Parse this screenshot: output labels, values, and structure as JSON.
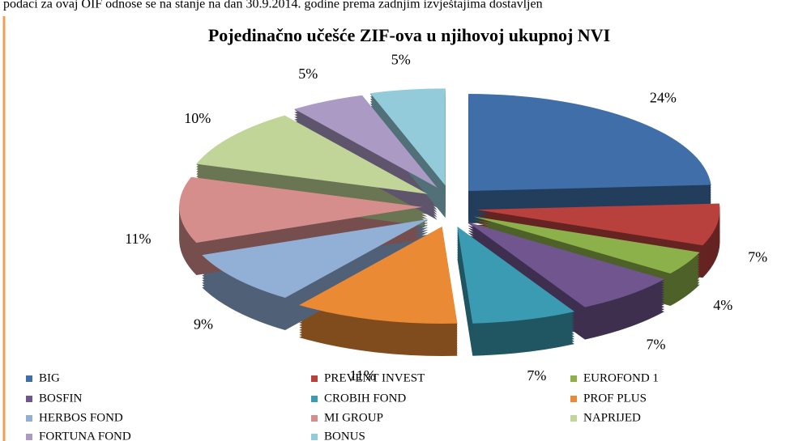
{
  "header_text": "podaci za ovaj OIF odnose se na stanje na dan 30.9.2014. godine prema zadnjim izvještajima dostavljen",
  "chart_data": {
    "type": "pie",
    "title": "Pojedinačno učešće ZIF-ova u njihovoj ukupnoj NVI",
    "categories": [
      "BIG",
      "PREVENT INVEST",
      "EUROFOND 1",
      "BOSFIN",
      "CROBIH FOND",
      "PROF PLUS",
      "HERBOS FOND",
      "MI GROUP",
      "NAPRIJED",
      "FORTUNA FOND",
      "BONUS"
    ],
    "values": [
      24,
      7,
      4,
      7,
      7,
      11,
      9,
      11,
      10,
      5,
      5
    ],
    "value_labels": [
      "24%",
      "7%",
      "4%",
      "7%",
      "7%",
      "11%",
      "9%",
      "11%",
      "10%",
      "5%",
      "5%"
    ],
    "colors": [
      "#3f6ea8",
      "#b8403d",
      "#8cb04a",
      "#70558f",
      "#3a9bb3",
      "#ea8a35",
      "#92afd6",
      "#d68e8c",
      "#c0d597",
      "#ab9bc4",
      "#93cbdb"
    ]
  }
}
